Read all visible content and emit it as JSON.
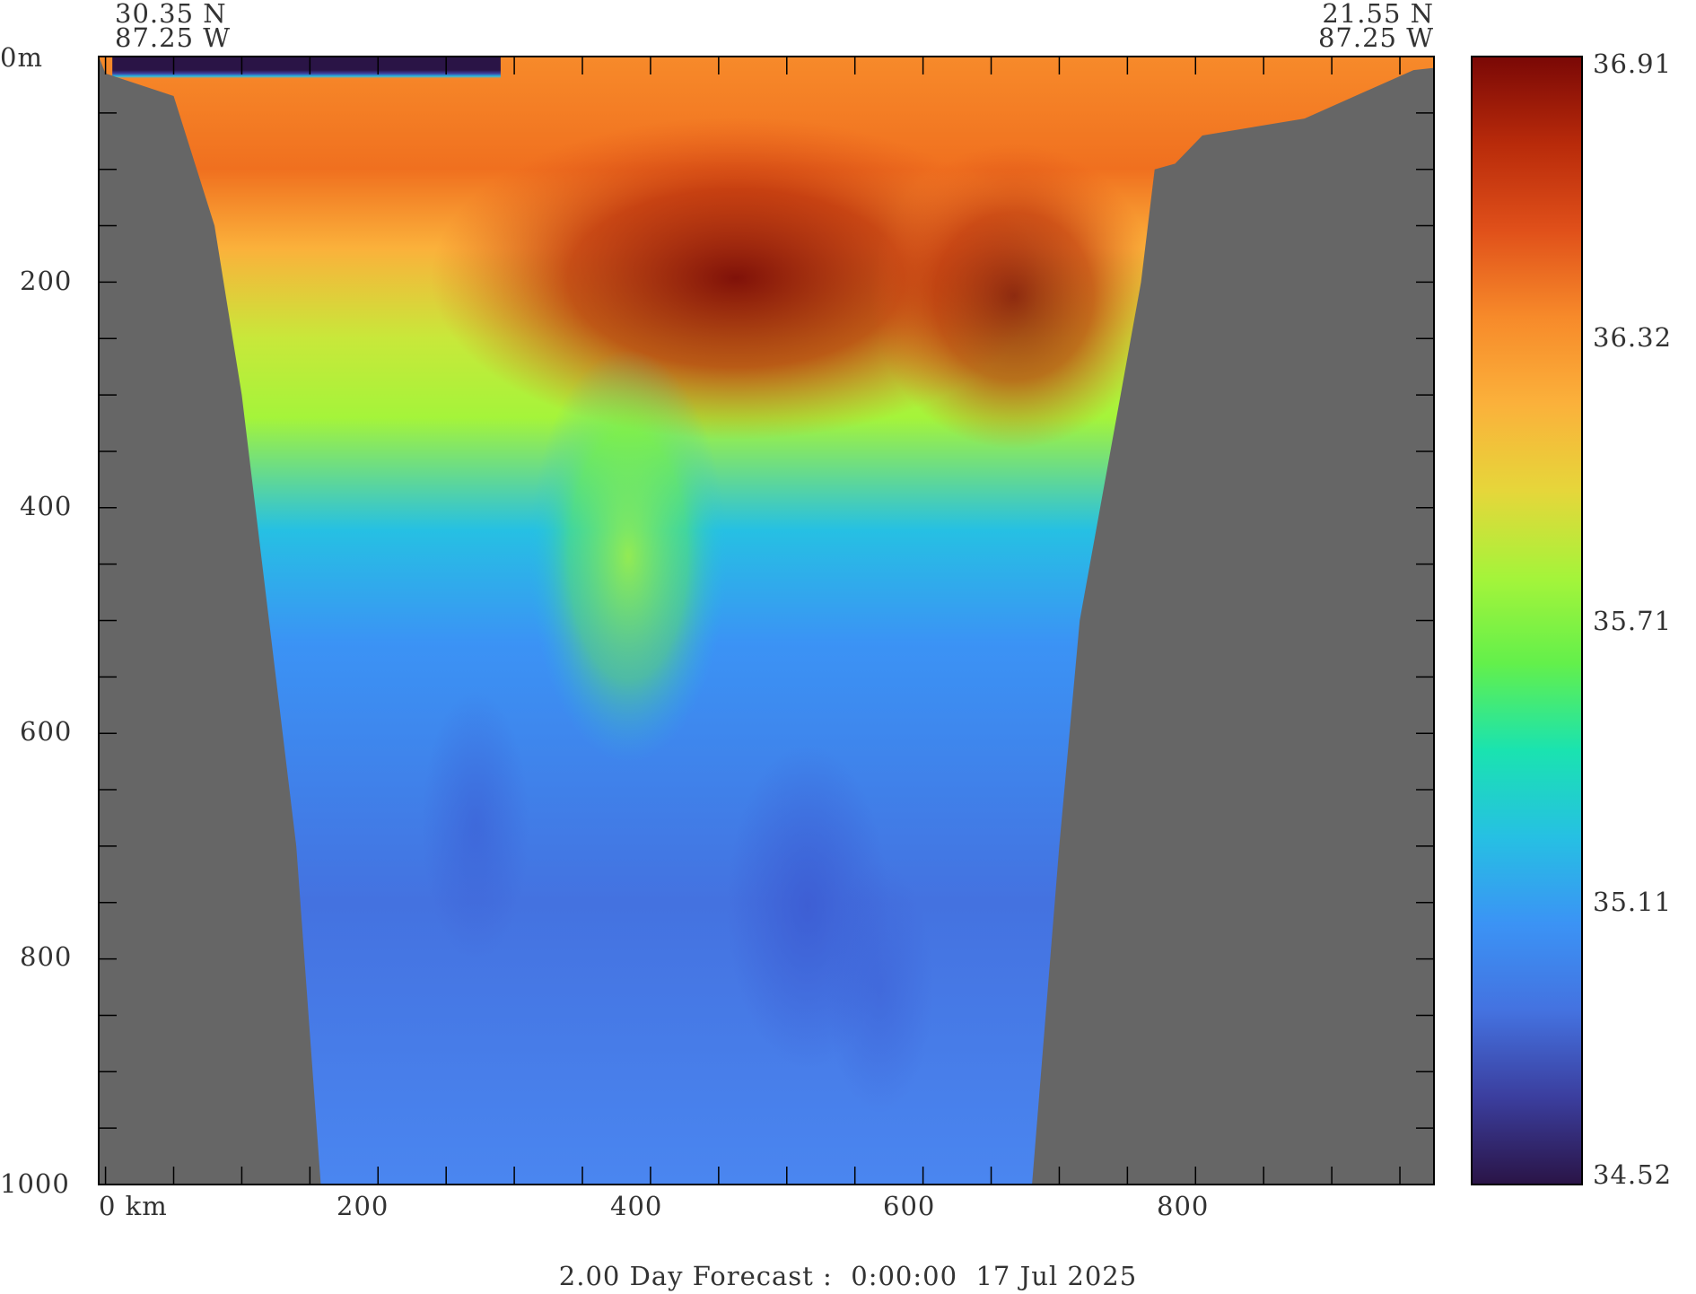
{
  "chart_data": {
    "type": "heatmap",
    "title": "2.00 Day Forecast :  0:00:00  17 Jul 2025",
    "xlabel": "",
    "ylabel": "",
    "start_point": {
      "lat": "30.35 N",
      "lon": "87.25 W"
    },
    "end_point": {
      "lat": "21.55 N",
      "lon": "87.25 W"
    },
    "x_unit_label": "km",
    "y_unit_label": "m",
    "xlim": [
      -5,
      975
    ],
    "ylim": [
      1000,
      0
    ],
    "x_tick_labels": [
      "0",
      "200",
      "400",
      "600",
      "800"
    ],
    "y_tick_labels": [
      "0",
      "200",
      "400",
      "600",
      "800",
      "1000"
    ],
    "x_ticks": [
      0,
      50,
      100,
      150,
      200,
      250,
      300,
      350,
      400,
      450,
      500,
      550,
      600,
      650,
      700,
      750,
      800,
      850,
      900,
      950
    ],
    "y_ticks": [
      0,
      50,
      100,
      150,
      200,
      250,
      300,
      350,
      400,
      450,
      500,
      550,
      600,
      650,
      700,
      750,
      800,
      850,
      900,
      950,
      1000
    ],
    "colorbar": {
      "min": 34.52,
      "max": 36.91,
      "tick_labels": [
        "36.91",
        "36.32",
        "35.71",
        "35.11",
        "34.52"
      ]
    },
    "land_color": "#666666",
    "left_bottom_depth_km": [
      [
        0,
        15
      ],
      [
        50,
        35
      ],
      [
        80,
        150
      ],
      [
        100,
        300
      ],
      [
        120,
        500
      ],
      [
        140,
        700
      ],
      [
        158,
        1000
      ]
    ],
    "right_bottom_depth_km": [
      [
        680,
        1000
      ],
      [
        700,
        700
      ],
      [
        715,
        500
      ],
      [
        730,
        400
      ],
      [
        745,
        300
      ],
      [
        760,
        200
      ],
      [
        770,
        100
      ],
      [
        785,
        95
      ],
      [
        805,
        70
      ],
      [
        880,
        55
      ],
      [
        960,
        12
      ],
      [
        975,
        10
      ]
    ],
    "fields_approx": [
      {
        "feature": "fresh surface layer",
        "x_km": [
          5,
          290
        ],
        "depth_m": [
          0,
          20
        ],
        "value": 34.52
      },
      {
        "feature": "salinity maximum core",
        "x_km": [
          300,
          730
        ],
        "depth_m": [
          130,
          330
        ],
        "value": 36.91
      },
      {
        "feature": "surface mixed layer",
        "x_km": [
          300,
          975
        ],
        "depth_m": [
          0,
          100
        ],
        "value": 36.32
      },
      {
        "feature": "intermediate water",
        "x_km": [
          150,
          700
        ],
        "depth_m": [
          600,
          1000
        ],
        "value": 35.0
      }
    ]
  },
  "colors": {
    "land": "#666666",
    "colormap": [
      "#2a1446",
      "#3b3e9e",
      "#4472e0",
      "#3b93f5",
      "#26c0e3",
      "#1ae3b0",
      "#63f04b",
      "#a5f43a",
      "#e6d63a",
      "#fbb13b",
      "#f78a2a",
      "#e0501a",
      "#b82a0a",
      "#7a0806"
    ]
  }
}
